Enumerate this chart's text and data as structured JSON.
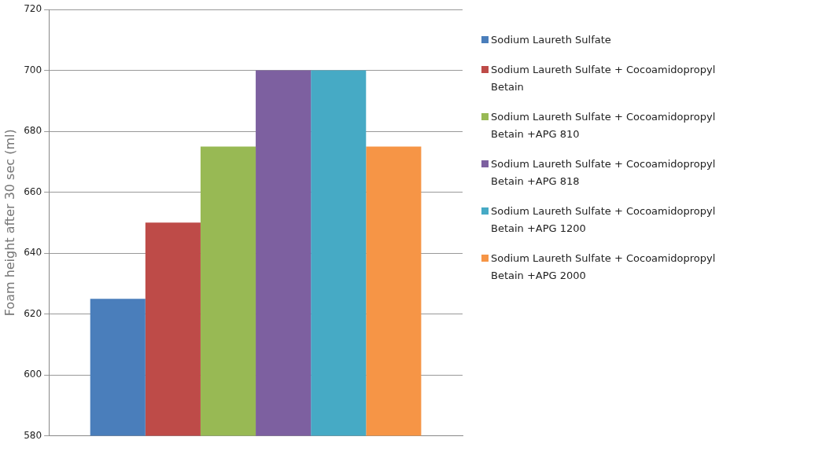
{
  "chart_data": {
    "type": "bar",
    "ylabel": "Foam height after 30 sec (ml)",
    "categories": [
      null
    ],
    "series": [
      {
        "name": "Sodium Laureth Sulfate",
        "color": "#4a7ebb",
        "values": [
          625
        ]
      },
      {
        "name": "Sodium Laureth Sulfate + Cocoamidopropyl Betain",
        "color": "#be4b48",
        "values": [
          650
        ]
      },
      {
        "name": "Sodium Laureth Sulfate + Cocoamidopropyl Betain +APG 810",
        "color": "#98b954",
        "values": [
          675
        ]
      },
      {
        "name": "Sodium Laureth Sulfate + Cocoamidopropyl Betain +APG 818",
        "color": "#7d60a0",
        "values": [
          700
        ]
      },
      {
        "name": "Sodium Laureth Sulfate + Cocoamidopropyl Betain +APG 1200",
        "color": "#46aac5",
        "values": [
          700
        ]
      },
      {
        "name": "Sodium Laureth Sulfate + Cocoamidopropyl Betain +APG 2000",
        "color": "#f69546",
        "values": [
          675
        ]
      }
    ],
    "ylim": [
      580,
      720
    ],
    "yticks": [
      580,
      600,
      620,
      640,
      660,
      680,
      700,
      720
    ],
    "grid": "y",
    "legend": "right"
  }
}
